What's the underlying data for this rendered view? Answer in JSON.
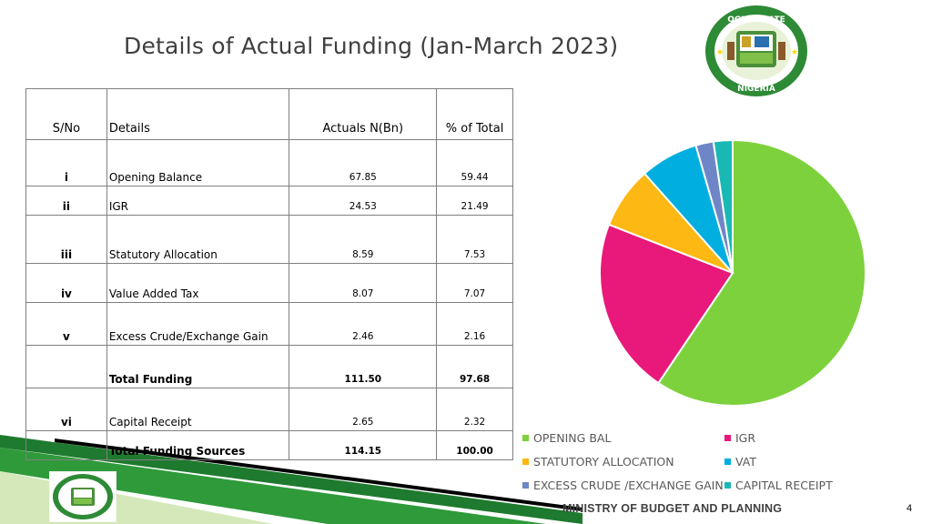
{
  "title": "Details of Actual Funding (Jan-March 2023)",
  "table": {
    "headers": [
      "S/No",
      "Details",
      "Actuals N(Bn)",
      "% of Total"
    ],
    "rows": [
      {
        "sno": "i",
        "details": "Opening Balance",
        "actual": "67.85",
        "pct": "59.44"
      },
      {
        "sno": "ii",
        "details": "IGR",
        "actual": "24.53",
        "pct": "21.49"
      },
      {
        "sno": "iii",
        "details": "Statutory Allocation",
        "actual": "8.59",
        "pct": "7.53"
      },
      {
        "sno": "iv",
        "details": "Value Added Tax",
        "actual": "8.07",
        "pct": "7.07"
      },
      {
        "sno": "v",
        "details": "Excess Crude/Exchange Gain",
        "actual": "2.46",
        "pct": "2.16"
      },
      {
        "sno": "",
        "details": "Total Funding",
        "actual": "111.50",
        "pct": "97.68"
      },
      {
        "sno": "vi",
        "details": "Capital Receipt",
        "actual": "2.65",
        "pct": "2.32"
      },
      {
        "sno": "",
        "details": "Total Funding Sources",
        "actual": "114.15",
        "pct": "100.00"
      }
    ]
  },
  "chart_data": {
    "type": "pie",
    "title": "",
    "categories": [
      "OPENING BAL",
      "IGR",
      "STATUTORY ALLOCATION",
      "VAT",
      "EXCESS CRUDE /EXCHANGE GAIN",
      "CAPITAL RECEIPT"
    ],
    "values": [
      67.85,
      24.53,
      8.59,
      8.07,
      2.46,
      2.65
    ],
    "colors": [
      "#7dd13d",
      "#e8197a",
      "#fdb813",
      "#00aee0",
      "#6f86c6",
      "#19b8b5"
    ],
    "legend_placement": "bottom"
  },
  "legend": {
    "items": [
      "OPENING BAL",
      "IGR",
      "STATUTORY ALLOCATION",
      "VAT",
      "EXCESS CRUDE /EXCHANGE GAIN",
      "CAPITAL RECEIPT"
    ]
  },
  "footer": {
    "ministry": "MINISTRY OF BUDGET AND PLANNING",
    "page_number": "4"
  },
  "logo": {
    "text_top": "OGUN STATE",
    "text_bottom": "NIGERIA"
  },
  "icons": {
    "logo": "ogun-state-seal-icon"
  }
}
